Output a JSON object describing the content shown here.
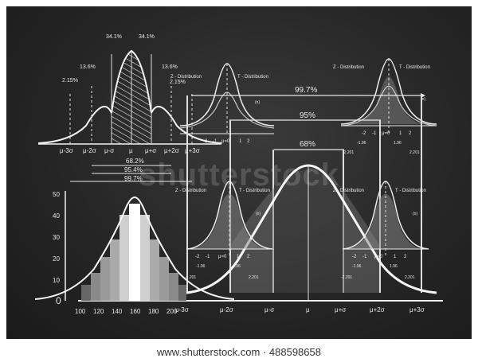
{
  "colors": {
    "board": "#262626",
    "chalk": "#f0f0f0",
    "fill_light": "#bdbdbd",
    "fill_mid": "#7a7a7a",
    "fill_dark": "#4a4a4a"
  },
  "normal_curve": {
    "band_percents": {
      "left_2_15": "2.15%",
      "left_13_6": "13.6%",
      "left_34_1": "34.1%",
      "right_34_1": "34.1%",
      "right_13_6": "13.6%",
      "right_2_15": "2.15%"
    },
    "axis_labels": [
      "μ-3σ",
      "μ-2σ",
      "μ-σ",
      "μ",
      "μ+σ",
      "μ+2σ",
      "μ+3σ"
    ],
    "coverage": {
      "one_sigma": "68.2%",
      "two_sigma": "95.4%",
      "three_sigma": "99.7%"
    }
  },
  "zt_top": {
    "z_label": "Z - Distribution",
    "t_label": "T - Distribution",
    "tick_labels": [
      "-2",
      "-1",
      "μ=0",
      "1",
      "2"
    ],
    "mu_t": "(n)",
    "crit_z_left": "-1.96",
    "crit_z_right": "1.96",
    "crit_t_left": "-2.201",
    "crit_t_right": "2.201",
    "coverage_997": "99.7%",
    "coverage_95": "95%"
  },
  "big_normal": {
    "coverage_68": "68%",
    "axis_labels": [
      "μ-3σ",
      "μ-2σ",
      "μ-σ",
      "μ",
      "μ+σ",
      "μ+2σ",
      "μ+3σ"
    ]
  },
  "histogram": {
    "y_ticks": [
      "0",
      "10",
      "20",
      "30",
      "40",
      "50"
    ],
    "x_ticks": [
      "100",
      "120",
      "140",
      "160",
      "180",
      "200"
    ]
  },
  "watermark": "shutterstock",
  "footer": "www.shutterstock.com · 488598658"
}
